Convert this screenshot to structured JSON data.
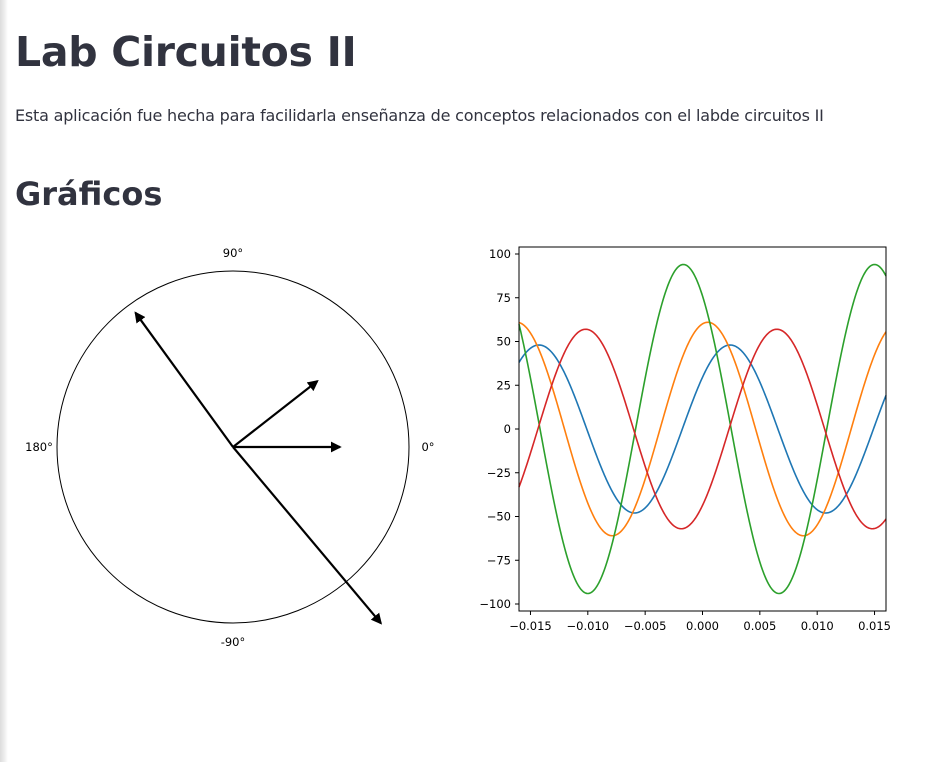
{
  "page": {
    "title": "Lab Circuitos II",
    "description": "Esta aplicación fue hecha para facilidarla enseñanza de conceptos relacionados con el labde circuitos II",
    "section_heading": "Gráficos"
  },
  "chart_data": [
    {
      "type": "polar-phasor",
      "angle_labels": [
        "90°",
        "180°",
        "0°",
        "-90°"
      ],
      "arrows": [
        {
          "magnitude": 1.0,
          "angle_deg": 0
        },
        {
          "magnitude": 1.0,
          "angle_deg": 38
        },
        {
          "magnitude": 1.55,
          "angle_deg": 126
        },
        {
          "magnitude": 2.15,
          "angle_deg": -50
        }
      ],
      "arrow_color": "#000000"
    },
    {
      "type": "line",
      "xlim": [
        -0.016,
        0.016
      ],
      "ylim": [
        -100,
        100
      ],
      "x_ticks": [
        "−0.015",
        "−0.010",
        "−0.005",
        "0.000",
        "0.005",
        "0.010",
        "0.015"
      ],
      "x_tick_values": [
        -0.015,
        -0.01,
        -0.005,
        0.0,
        0.005,
        0.01,
        0.015
      ],
      "y_ticks": [
        "100",
        "75",
        "50",
        "25",
        "0",
        "−25",
        "−50",
        "−75",
        "−100"
      ],
      "y_tick_values": [
        100,
        75,
        50,
        25,
        0,
        -25,
        -50,
        -75,
        -100
      ],
      "frequency_hz": 60,
      "series": [
        {
          "color": "#1f77b4",
          "amplitude": 48,
          "phase_deg": 38
        },
        {
          "color": "#ff7f0e",
          "amplitude": 61,
          "phase_deg": 80
        },
        {
          "color": "#2ca02c",
          "amplitude": 94,
          "phase_deg": 126
        },
        {
          "color": "#d62728",
          "amplitude": 57,
          "phase_deg": -50
        }
      ]
    }
  ]
}
